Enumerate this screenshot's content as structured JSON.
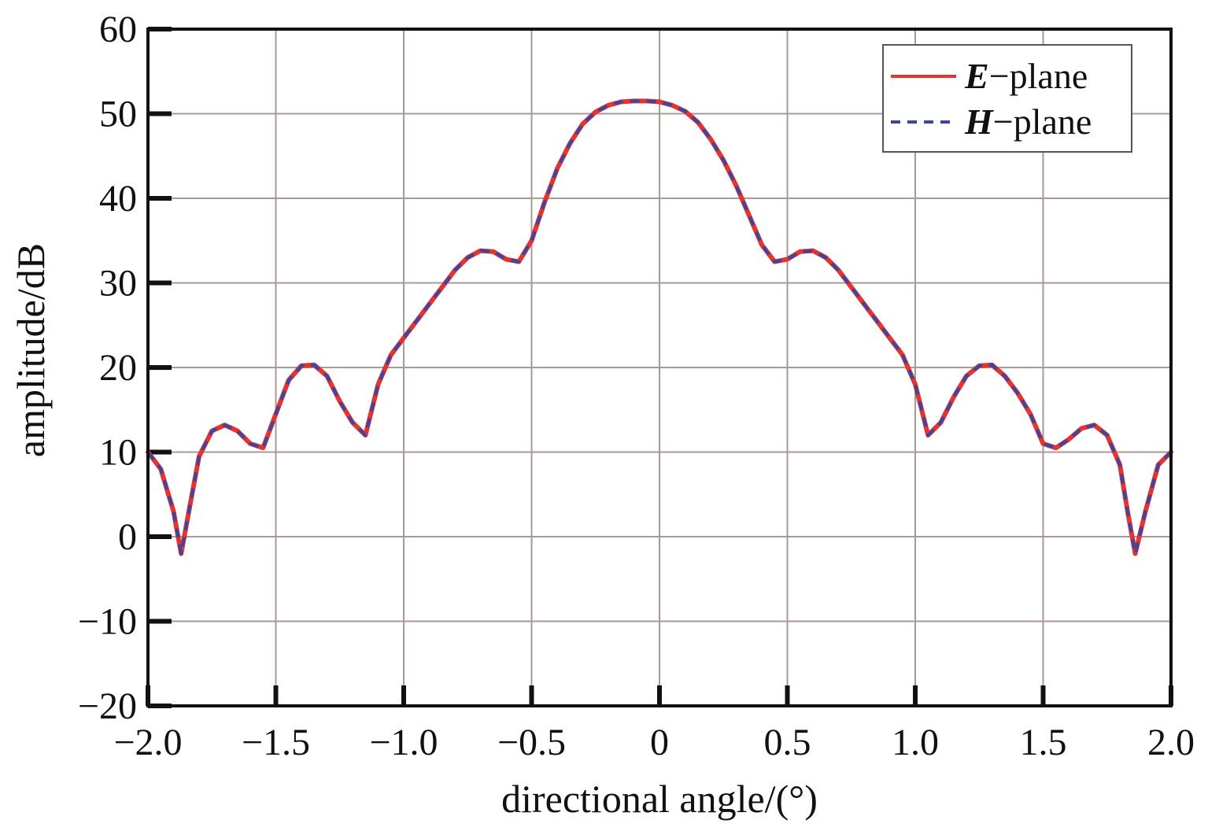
{
  "chart_data": {
    "type": "line",
    "title": "",
    "xlabel": "directional angle/(°)",
    "ylabel": "amplitude/dB",
    "xlim": [
      -2.0,
      2.0
    ],
    "ylim": [
      -20,
      60
    ],
    "xticks": [
      -2.0,
      -1.5,
      -1.0,
      -0.5,
      0,
      0.5,
      1.0,
      1.5,
      2.0
    ],
    "xtick_labels": [
      "−2.0",
      "−1.5",
      "−1.0",
      "−0.5",
      "0",
      "0.5",
      "1.0",
      "1.5",
      "2.0"
    ],
    "yticks": [
      -20,
      -10,
      0,
      10,
      20,
      30,
      40,
      50,
      60
    ],
    "ytick_labels": [
      "−20",
      "−10",
      "0",
      "10",
      "20",
      "30",
      "40",
      "50",
      "60"
    ],
    "grid": true,
    "legend_position": "top-right",
    "series": [
      {
        "name_main": "E",
        "name_suffix": "−plane",
        "style": "solid",
        "color": "#e8322e",
        "x": [
          -2.0,
          -1.95,
          -1.9,
          -1.87,
          -1.84,
          -1.8,
          -1.75,
          -1.7,
          -1.65,
          -1.6,
          -1.55,
          -1.5,
          -1.45,
          -1.4,
          -1.35,
          -1.3,
          -1.25,
          -1.2,
          -1.15,
          -1.1,
          -1.05,
          -1.0,
          -0.95,
          -0.9,
          -0.85,
          -0.8,
          -0.75,
          -0.7,
          -0.65,
          -0.6,
          -0.55,
          -0.5,
          -0.45,
          -0.4,
          -0.35,
          -0.3,
          -0.25,
          -0.2,
          -0.15,
          -0.1,
          -0.05,
          0,
          0.05,
          0.1,
          0.15,
          0.2,
          0.25,
          0.3,
          0.35,
          0.4,
          0.45,
          0.5,
          0.55,
          0.6,
          0.65,
          0.7,
          0.75,
          0.8,
          0.85,
          0.9,
          0.95,
          1.0,
          1.05,
          1.1,
          1.15,
          1.2,
          1.25,
          1.3,
          1.35,
          1.4,
          1.45,
          1.5,
          1.55,
          1.6,
          1.65,
          1.7,
          1.75,
          1.8,
          1.83,
          1.86,
          1.9,
          1.95,
          2.0
        ],
        "y": [
          10.0,
          8.0,
          3.0,
          -2.0,
          3.0,
          9.5,
          12.5,
          13.2,
          12.5,
          11.0,
          10.5,
          14.5,
          18.5,
          20.2,
          20.3,
          19.0,
          16.0,
          13.5,
          12.0,
          18.0,
          21.5,
          23.5,
          25.5,
          27.5,
          29.5,
          31.5,
          33.0,
          33.8,
          33.7,
          32.8,
          32.5,
          35.0,
          39.5,
          43.5,
          46.5,
          48.8,
          50.2,
          51.0,
          51.4,
          51.5,
          51.5,
          51.4,
          51.0,
          50.3,
          49.0,
          47.0,
          44.5,
          41.5,
          38.0,
          34.5,
          32.5,
          32.8,
          33.7,
          33.8,
          33.0,
          31.5,
          29.5,
          27.5,
          25.5,
          23.5,
          21.5,
          18.0,
          12.0,
          13.5,
          16.5,
          19.0,
          20.2,
          20.3,
          19.0,
          17.0,
          14.5,
          11.0,
          10.5,
          11.5,
          12.8,
          13.2,
          12.0,
          8.5,
          3.0,
          -2.0,
          3.0,
          8.5,
          10.0
        ]
      },
      {
        "name_main": "H",
        "name_suffix": "−plane",
        "style": "dashed",
        "color": "#3a46a0",
        "x": [
          -2.0,
          -1.95,
          -1.9,
          -1.87,
          -1.84,
          -1.8,
          -1.75,
          -1.7,
          -1.65,
          -1.6,
          -1.55,
          -1.5,
          -1.45,
          -1.4,
          -1.35,
          -1.3,
          -1.25,
          -1.2,
          -1.15,
          -1.1,
          -1.05,
          -1.0,
          -0.95,
          -0.9,
          -0.85,
          -0.8,
          -0.75,
          -0.7,
          -0.65,
          -0.6,
          -0.55,
          -0.5,
          -0.45,
          -0.4,
          -0.35,
          -0.3,
          -0.25,
          -0.2,
          -0.15,
          -0.1,
          -0.05,
          0,
          0.05,
          0.1,
          0.15,
          0.2,
          0.25,
          0.3,
          0.35,
          0.4,
          0.45,
          0.5,
          0.55,
          0.6,
          0.65,
          0.7,
          0.75,
          0.8,
          0.85,
          0.9,
          0.95,
          1.0,
          1.05,
          1.1,
          1.15,
          1.2,
          1.25,
          1.3,
          1.35,
          1.4,
          1.45,
          1.5,
          1.55,
          1.6,
          1.65,
          1.7,
          1.75,
          1.8,
          1.83,
          1.86,
          1.9,
          1.95,
          2.0
        ],
        "y": [
          10.0,
          8.0,
          3.0,
          -2.0,
          3.0,
          9.5,
          12.5,
          13.2,
          12.5,
          11.0,
          10.5,
          14.5,
          18.5,
          20.2,
          20.3,
          19.0,
          16.0,
          13.5,
          12.0,
          18.0,
          21.5,
          23.5,
          25.5,
          27.5,
          29.5,
          31.5,
          33.0,
          33.8,
          33.7,
          32.8,
          32.5,
          35.0,
          39.5,
          43.5,
          46.5,
          48.8,
          50.2,
          51.0,
          51.4,
          51.5,
          51.5,
          51.4,
          51.0,
          50.3,
          49.0,
          47.0,
          44.5,
          41.5,
          38.0,
          34.5,
          32.5,
          32.8,
          33.7,
          33.8,
          33.0,
          31.5,
          29.5,
          27.5,
          25.5,
          23.5,
          21.5,
          18.0,
          12.0,
          13.5,
          16.5,
          19.0,
          20.2,
          20.3,
          19.0,
          17.0,
          14.5,
          11.0,
          10.5,
          11.5,
          12.8,
          13.2,
          12.0,
          8.5,
          3.0,
          -2.0,
          3.0,
          8.5,
          10.0
        ]
      }
    ]
  }
}
